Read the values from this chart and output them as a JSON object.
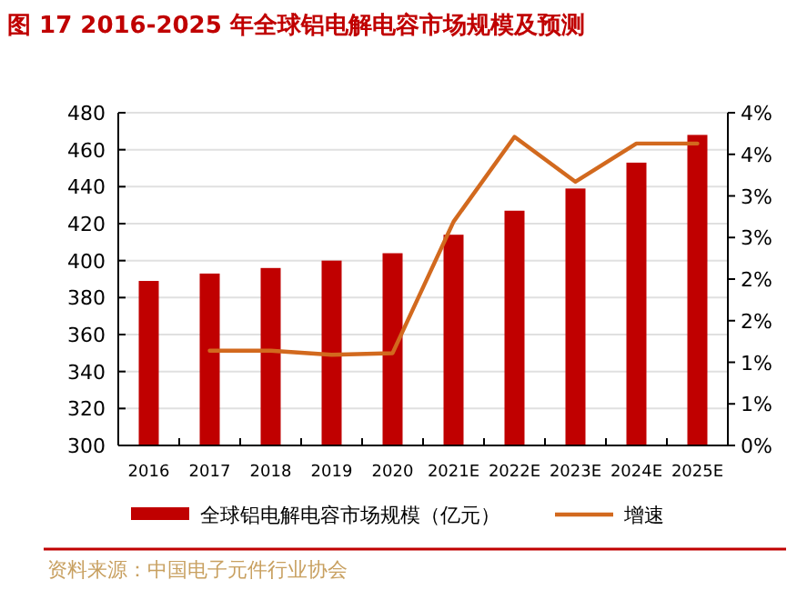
{
  "chart_data": {
    "type": "bar",
    "title": "图 17 2016-2025 年全球铝电解电容市场规模及预测",
    "categories": [
      "2016",
      "2017",
      "2018",
      "2019",
      "2020",
      "2021E",
      "2022E",
      "2023E",
      "2024E",
      "2025E"
    ],
    "series": [
      {
        "name": "全球铝电解电容市场规模（亿元）",
        "color": "#c00000",
        "values": [
          389,
          393,
          396,
          400,
          404,
          414,
          427,
          439,
          453,
          468
        ]
      },
      {
        "name": "增速",
        "type": "line",
        "axis": "y2",
        "color": "#d2691e",
        "values": [
          null,
          1.14,
          1.14,
          1.09,
          1.11,
          2.69,
          3.71,
          3.17,
          3.63,
          3.63
        ]
      }
    ],
    "ylim": [
      300,
      480
    ],
    "yticks": [
      300,
      320,
      340,
      360,
      380,
      400,
      420,
      440,
      460,
      480
    ],
    "y2lim": [
      0,
      4
    ],
    "y2ticks": [
      {
        "value": 0,
        "label": "0%"
      },
      {
        "value": 0.5,
        "label": "1%"
      },
      {
        "value": 1,
        "label": "1%"
      },
      {
        "value": 1.5,
        "label": "2%"
      },
      {
        "value": 2,
        "label": "2%"
      },
      {
        "value": 2.5,
        "label": "3%"
      },
      {
        "value": 3,
        "label": "3%"
      },
      {
        "value": 3.5,
        "label": "4%"
      },
      {
        "value": 4,
        "label": "4%"
      }
    ],
    "grid": "y",
    "legend": "bottom",
    "annotations": [
      "资料来源：中国电子元件行业协会"
    ]
  }
}
